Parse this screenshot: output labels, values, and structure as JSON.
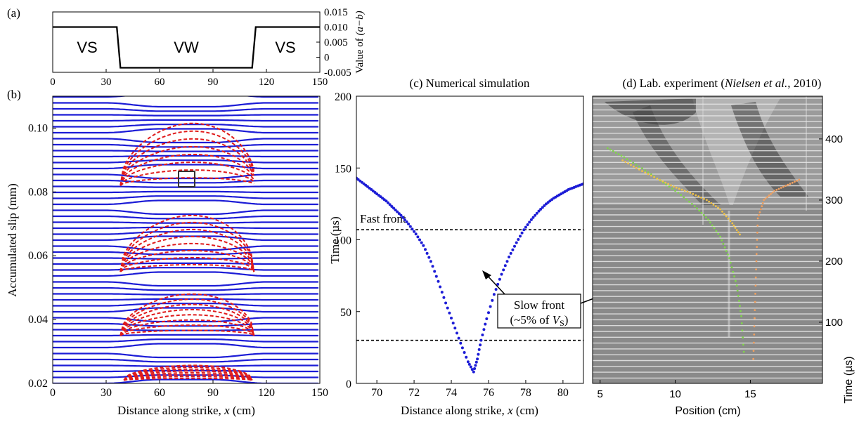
{
  "panels": {
    "a": {
      "letter": "(a)",
      "region_labels": [
        "VS",
        "VW",
        "VS"
      ],
      "x_ticks": [
        "0",
        "30",
        "60",
        "90",
        "120",
        "150"
      ],
      "y_ticks": [
        "0.015",
        "0.010",
        "0.005",
        "0",
        "-0.005"
      ],
      "ylabel_prefix": "Value of ",
      "ylabel_var": "(a−b)"
    },
    "b": {
      "letter": "(b)",
      "ylabel": "Accumulated slip (mm)",
      "xlabel_prefix": "Distance along strike, ",
      "xlabel_var": "x",
      "xlabel_suffix": " (cm)",
      "x_ticks": [
        "0",
        "30",
        "60",
        "90",
        "120",
        "150"
      ],
      "y_ticks": [
        "0.10",
        "0.08",
        "0.06",
        "0.04",
        "0.02"
      ]
    },
    "c": {
      "title": "(c) Numerical simulation",
      "ylabel": "Time (µs)",
      "xlabel_prefix": "Distance along strike, ",
      "xlabel_var": "x",
      "xlabel_suffix": "  (cm)",
      "x_ticks": [
        "70",
        "72",
        "74",
        "76",
        "78",
        "80"
      ],
      "y_ticks": [
        "200",
        "150",
        "100",
        "50",
        "0"
      ],
      "fast_front_label": "Fast front",
      "slow_front_line1": "Slow front",
      "slow_front_line2_prefix": "(~5% of ",
      "slow_front_var": "V",
      "slow_front_sub": "S",
      "slow_front_line2_suffix": ")"
    },
    "d": {
      "title_prefix": "(d) Lab. experiment (",
      "title_author": "Nielsen et al.",
      "title_suffix": ", 2010)",
      "xlabel": "Position (cm)",
      "ylabel": "Time (µs)",
      "x_ticks": [
        "5",
        "10",
        "15"
      ],
      "y_ticks": [
        "400",
        "300",
        "200",
        "100"
      ]
    }
  },
  "chart_data": [
    {
      "type": "line",
      "panel": "a",
      "x": [
        0,
        36,
        38,
        112,
        114,
        150
      ],
      "y": [
        0.01,
        0.01,
        -0.0035,
        -0.0035,
        0.01,
        0.01
      ],
      "xlim": [
        0,
        150
      ],
      "ylim": [
        -0.005,
        0.015
      ],
      "color": "#000000"
    },
    {
      "type": "line",
      "panel": "b",
      "xlim": [
        0,
        150
      ],
      "ylim": [
        0.02,
        0.11
      ],
      "interseismic_color": "#1c1cd6",
      "coseismic_color": "#e01b1b",
      "event_peak_slip": [
        0.026,
        0.049,
        0.074,
        0.103
      ],
      "event_floor_slip": [
        0.021,
        0.035,
        0.055,
        0.082
      ]
    },
    {
      "type": "scatter",
      "panel": "c",
      "xlim": [
        68.9,
        81.1
      ],
      "ylim": [
        0,
        200
      ],
      "x": [
        68.9,
        69.3,
        69.7,
        70.1,
        70.5,
        70.9,
        71.3,
        71.7,
        72.1,
        72.5,
        72.9,
        73.3,
        73.7,
        74.1,
        74.5,
        74.9,
        75.2,
        75.4,
        75.6,
        75.9,
        76.3,
        76.7,
        77.1,
        77.5,
        77.9,
        78.3,
        78.7,
        79.1,
        79.5,
        79.9,
        80.3,
        80.7,
        81.1
      ],
      "y": [
        143,
        139,
        135,
        131,
        127,
        122,
        117,
        111,
        104,
        96,
        85,
        71,
        56,
        42,
        28,
        15,
        8,
        17,
        30,
        45,
        62,
        76,
        88,
        98,
        107,
        114,
        120,
        125,
        129,
        132,
        135,
        137,
        139
      ],
      "fast_front_time": 107,
      "slow_front_time": 30,
      "color": "#1c1cd6"
    },
    {
      "type": "scatter",
      "panel": "d",
      "x_range": [
        4.5,
        19.8
      ],
      "y_range": [
        0,
        470
      ],
      "series": [
        {
          "color": "#7fd44a",
          "x": [
            5.5,
            6.6,
            7.8,
            9.0,
            10.2,
            11.3,
            12.2,
            13.0,
            13.6,
            14.1,
            14.4,
            14.6
          ],
          "y": [
            385,
            370,
            352,
            332,
            312,
            290,
            268,
            240,
            205,
            160,
            110,
            40
          ]
        },
        {
          "color": "#f0c246",
          "x": [
            6.5,
            7.6,
            8.8,
            9.9,
            11.0,
            12.1,
            13.0,
            13.8,
            14.4
          ],
          "y": [
            365,
            350,
            335,
            322,
            312,
            300,
            285,
            262,
            240
          ]
        },
        {
          "color": "#f0a060",
          "x": [
            15.2,
            15.3,
            15.4,
            15.5,
            15.9,
            16.6,
            17.5,
            18.4
          ],
          "y": [
            40,
            120,
            200,
            270,
            300,
            315,
            325,
            335
          ]
        }
      ]
    }
  ]
}
